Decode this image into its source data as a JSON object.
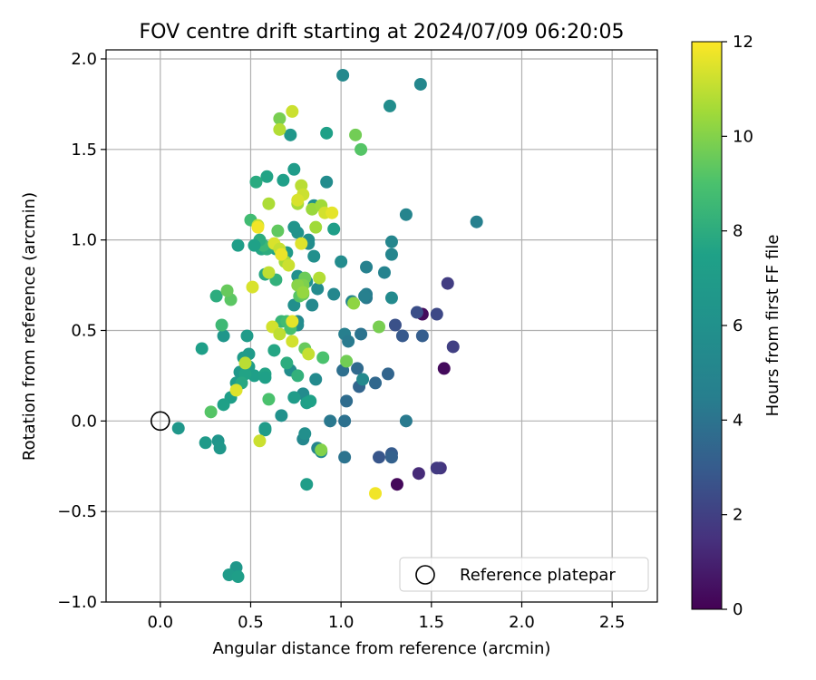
{
  "chart_data": {
    "type": "scatter",
    "title": "FOV centre drift starting at 2024/07/09 06:20:05",
    "xlabel": "Angular distance from reference (arcmin)",
    "ylabel": "Rotation from reference (arcmin)",
    "xlim": [
      -0.3,
      2.75
    ],
    "ylim": [
      -1.0,
      2.05
    ],
    "xticks": [
      0.0,
      0.5,
      1.0,
      1.5,
      2.0,
      2.5
    ],
    "xtick_labels": [
      "0.0",
      "0.5",
      "1.0",
      "1.5",
      "2.0",
      "2.5"
    ],
    "yticks": [
      -1.0,
      -0.5,
      0.0,
      0.5,
      1.0,
      1.5,
      2.0
    ],
    "ytick_labels": [
      "−1.0",
      "−0.5",
      "0.0",
      "0.5",
      "1.0",
      "1.5",
      "2.0"
    ],
    "grid": true,
    "colormap": "viridis",
    "colorbar": {
      "label": "Hours from first FF file",
      "range": [
        0,
        12
      ],
      "ticks": [
        0,
        2,
        4,
        6,
        8,
        10,
        12
      ],
      "tick_labels": [
        "0",
        "2",
        "4",
        "6",
        "8",
        "10",
        "12"
      ]
    },
    "legend": {
      "placement": "lower-right",
      "entries": [
        "Reference platepar"
      ]
    },
    "reference_point": {
      "x": 0.0,
      "y": 0.0,
      "label": "Reference platepar"
    },
    "points": [
      {
        "x": 1.31,
        "y": -0.35,
        "h": 0.2
      },
      {
        "x": 1.45,
        "y": 0.59,
        "h": 0.3
      },
      {
        "x": 1.57,
        "y": 0.29,
        "h": 0.3
      },
      {
        "x": 1.43,
        "y": -0.29,
        "h": 1.3
      },
      {
        "x": 1.55,
        "y": -0.26,
        "h": 1.6
      },
      {
        "x": 1.53,
        "y": -0.26,
        "h": 1.8
      },
      {
        "x": 1.59,
        "y": 0.76,
        "h": 1.9
      },
      {
        "x": 1.62,
        "y": 0.41,
        "h": 2.0
      },
      {
        "x": 1.53,
        "y": 0.59,
        "h": 2.3
      },
      {
        "x": 1.42,
        "y": 0.6,
        "h": 2.5
      },
      {
        "x": 1.3,
        "y": 0.53,
        "h": 2.6
      },
      {
        "x": 1.34,
        "y": 0.47,
        "h": 2.9
      },
      {
        "x": 1.45,
        "y": 0.47,
        "h": 3.1
      },
      {
        "x": 1.28,
        "y": -0.18,
        "h": 3.0
      },
      {
        "x": 1.28,
        "y": -0.2,
        "h": 3.2
      },
      {
        "x": 1.21,
        "y": -0.2,
        "h": 2.8
      },
      {
        "x": 1.1,
        "y": 0.19,
        "h": 3.4
      },
      {
        "x": 1.19,
        "y": 0.21,
        "h": 3.5
      },
      {
        "x": 1.26,
        "y": 0.26,
        "h": 3.4
      },
      {
        "x": 1.09,
        "y": 0.29,
        "h": 3.6
      },
      {
        "x": 1.01,
        "y": 0.28,
        "h": 3.8
      },
      {
        "x": 1.03,
        "y": 0.11,
        "h": 3.7
      },
      {
        "x": 1.02,
        "y": 0.0,
        "h": 3.9
      },
      {
        "x": 0.94,
        "y": 0.0,
        "h": 4.2
      },
      {
        "x": 1.02,
        "y": -0.2,
        "h": 4.0
      },
      {
        "x": 1.36,
        "y": 0.0,
        "h": 4.3
      },
      {
        "x": 1.11,
        "y": 0.48,
        "h": 4.0
      },
      {
        "x": 1.02,
        "y": 0.48,
        "h": 4.5
      },
      {
        "x": 1.04,
        "y": 0.44,
        "h": 4.3
      },
      {
        "x": 1.14,
        "y": 0.68,
        "h": 4.2
      },
      {
        "x": 1.14,
        "y": 0.7,
        "h": 4.4
      },
      {
        "x": 1.13,
        "y": 0.69,
        "h": 4.6
      },
      {
        "x": 1.24,
        "y": 0.82,
        "h": 4.8
      },
      {
        "x": 1.14,
        "y": 0.85,
        "h": 4.7
      },
      {
        "x": 1.28,
        "y": 0.92,
        "h": 5.0
      },
      {
        "x": 1.28,
        "y": 0.99,
        "h": 5.1
      },
      {
        "x": 1.36,
        "y": 1.14,
        "h": 4.9
      },
      {
        "x": 1.75,
        "y": 1.1,
        "h": 4.6
      },
      {
        "x": 1.28,
        "y": 0.68,
        "h": 5.4
      },
      {
        "x": 1.12,
        "y": 0.23,
        "h": 5.3
      },
      {
        "x": 1.0,
        "y": 0.88,
        "h": 5.6
      },
      {
        "x": 0.96,
        "y": 0.7,
        "h": 5.2
      },
      {
        "x": 1.06,
        "y": 0.66,
        "h": 5.0
      },
      {
        "x": 0.87,
        "y": 0.73,
        "h": 5.5
      },
      {
        "x": 0.84,
        "y": 0.64,
        "h": 5.3
      },
      {
        "x": 0.86,
        "y": 0.23,
        "h": 5.4
      },
      {
        "x": 0.87,
        "y": -0.15,
        "h": 5.0
      },
      {
        "x": 0.89,
        "y": -0.17,
        "h": 5.4
      },
      {
        "x": 0.79,
        "y": -0.1,
        "h": 5.2
      },
      {
        "x": 0.8,
        "y": -0.07,
        "h": 5.8
      },
      {
        "x": 0.79,
        "y": 0.15,
        "h": 5.5
      },
      {
        "x": 0.76,
        "y": 0.55,
        "h": 5.3
      },
      {
        "x": 0.76,
        "y": 0.53,
        "h": 5.6
      },
      {
        "x": 0.74,
        "y": 0.64,
        "h": 5.8
      },
      {
        "x": 0.72,
        "y": 0.28,
        "h": 5.7
      },
      {
        "x": 0.67,
        "y": 0.03,
        "h": 6.0
      },
      {
        "x": 0.82,
        "y": 1.0,
        "h": 5.9
      },
      {
        "x": 0.82,
        "y": 0.98,
        "h": 5.7
      },
      {
        "x": 0.81,
        "y": 0.77,
        "h": 6.1
      },
      {
        "x": 0.85,
        "y": 0.91,
        "h": 5.8
      },
      {
        "x": 0.76,
        "y": 0.8,
        "h": 6.0
      },
      {
        "x": 0.76,
        "y": 1.04,
        "h": 6.2
      },
      {
        "x": 0.74,
        "y": 1.07,
        "h": 6.3
      },
      {
        "x": 0.92,
        "y": 1.32,
        "h": 5.6
      },
      {
        "x": 1.01,
        "y": 1.91,
        "h": 5.3
      },
      {
        "x": 1.44,
        "y": 1.86,
        "h": 5.2
      },
      {
        "x": 1.27,
        "y": 1.74,
        "h": 5.7
      },
      {
        "x": 0.85,
        "y": 1.19,
        "h": 6.0
      },
      {
        "x": 0.72,
        "y": 1.58,
        "h": 6.6
      },
      {
        "x": 0.74,
        "y": 1.39,
        "h": 7.0
      },
      {
        "x": 0.68,
        "y": 1.33,
        "h": 7.3
      },
      {
        "x": 0.59,
        "y": 1.35,
        "h": 7.6
      },
      {
        "x": 0.53,
        "y": 1.32,
        "h": 7.9
      },
      {
        "x": 0.92,
        "y": 1.59,
        "h": 7.4
      },
      {
        "x": 0.96,
        "y": 1.06,
        "h": 7.2
      },
      {
        "x": 0.7,
        "y": 0.93,
        "h": 6.8
      },
      {
        "x": 0.67,
        "y": 0.92,
        "h": 7.1
      },
      {
        "x": 0.64,
        "y": 0.95,
        "h": 7.4
      },
      {
        "x": 0.56,
        "y": 0.95,
        "h": 7.7
      },
      {
        "x": 0.59,
        "y": 0.95,
        "h": 8.0
      },
      {
        "x": 0.58,
        "y": 0.81,
        "h": 7.8
      },
      {
        "x": 0.64,
        "y": 0.78,
        "h": 8.2
      },
      {
        "x": 0.57,
        "y": 0.97,
        "h": 8.5
      },
      {
        "x": 0.55,
        "y": 1.0,
        "h": 8.0
      },
      {
        "x": 0.52,
        "y": 0.97,
        "h": 7.5
      },
      {
        "x": 0.43,
        "y": 0.97,
        "h": 7.2
      },
      {
        "x": 0.48,
        "y": 0.47,
        "h": 6.9
      },
      {
        "x": 0.35,
        "y": 0.47,
        "h": 6.5
      },
      {
        "x": 0.49,
        "y": 0.37,
        "h": 6.8
      },
      {
        "x": 0.44,
        "y": 0.27,
        "h": 6.7
      },
      {
        "x": 0.46,
        "y": 0.35,
        "h": 6.9
      },
      {
        "x": 0.49,
        "y": 0.3,
        "h": 7.1
      },
      {
        "x": 0.52,
        "y": 0.25,
        "h": 7.3
      },
      {
        "x": 0.42,
        "y": 0.21,
        "h": 7.0
      },
      {
        "x": 0.39,
        "y": 0.13,
        "h": 7.2
      },
      {
        "x": 0.35,
        "y": 0.09,
        "h": 7.4
      },
      {
        "x": 0.47,
        "y": 0.26,
        "h": 7.6
      },
      {
        "x": 0.45,
        "y": 0.21,
        "h": 7.8
      },
      {
        "x": 0.58,
        "y": 0.26,
        "h": 7.6
      },
      {
        "x": 0.58,
        "y": 0.24,
        "h": 7.4
      },
      {
        "x": 0.63,
        "y": 0.39,
        "h": 7.7
      },
      {
        "x": 0.7,
        "y": 0.32,
        "h": 8.0
      },
      {
        "x": 0.76,
        "y": 0.25,
        "h": 8.2
      },
      {
        "x": 0.74,
        "y": 0.13,
        "h": 7.0
      },
      {
        "x": 0.81,
        "y": 0.1,
        "h": 7.3
      },
      {
        "x": 0.83,
        "y": 0.11,
        "h": 7.5
      },
      {
        "x": 0.58,
        "y": -0.04,
        "h": 6.8
      },
      {
        "x": 0.58,
        "y": -0.05,
        "h": 7.0
      },
      {
        "x": 0.81,
        "y": -0.35,
        "h": 7.1
      },
      {
        "x": 0.42,
        "y": -0.81,
        "h": 6.6
      },
      {
        "x": 0.38,
        "y": -0.85,
        "h": 6.9
      },
      {
        "x": 0.43,
        "y": -0.86,
        "h": 7.2
      },
      {
        "x": 0.1,
        "y": -0.04,
        "h": 6.6
      },
      {
        "x": 0.25,
        "y": -0.12,
        "h": 6.8
      },
      {
        "x": 0.32,
        "y": -0.11,
        "h": 6.4
      },
      {
        "x": 0.33,
        "y": -0.15,
        "h": 6.6
      },
      {
        "x": 0.23,
        "y": 0.4,
        "h": 7.3
      },
      {
        "x": 0.34,
        "y": 0.53,
        "h": 8.6
      },
      {
        "x": 0.31,
        "y": 0.69,
        "h": 8.0
      },
      {
        "x": 0.39,
        "y": 0.67,
        "h": 9.3
      },
      {
        "x": 0.37,
        "y": 0.72,
        "h": 9.5
      },
      {
        "x": 0.28,
        "y": 0.05,
        "h": 9.2
      },
      {
        "x": 0.6,
        "y": 0.12,
        "h": 9.0
      },
      {
        "x": 0.67,
        "y": 0.55,
        "h": 8.4
      },
      {
        "x": 0.7,
        "y": 0.55,
        "h": 8.7
      },
      {
        "x": 0.72,
        "y": 0.51,
        "h": 8.9
      },
      {
        "x": 0.77,
        "y": 0.69,
        "h": 9.2
      },
      {
        "x": 0.79,
        "y": 0.7,
        "h": 9.5
      },
      {
        "x": 0.8,
        "y": 0.4,
        "h": 9.5
      },
      {
        "x": 0.9,
        "y": 0.35,
        "h": 9.0
      },
      {
        "x": 1.03,
        "y": 0.33,
        "h": 9.7
      },
      {
        "x": 0.89,
        "y": -0.16,
        "h": 10.0
      },
      {
        "x": 1.07,
        "y": 0.65,
        "h": 10.2
      },
      {
        "x": 1.21,
        "y": 0.52,
        "h": 9.8
      },
      {
        "x": 1.08,
        "y": 1.58,
        "h": 9.7
      },
      {
        "x": 1.11,
        "y": 1.5,
        "h": 9.2
      },
      {
        "x": 0.66,
        "y": 1.67,
        "h": 9.8
      },
      {
        "x": 0.66,
        "y": 1.61,
        "h": 10.8
      },
      {
        "x": 0.73,
        "y": 1.71,
        "h": 11.2
      },
      {
        "x": 0.65,
        "y": 1.05,
        "h": 9.4
      },
      {
        "x": 0.8,
        "y": 0.79,
        "h": 9.6
      },
      {
        "x": 0.79,
        "y": 0.75,
        "h": 9.9
      },
      {
        "x": 0.76,
        "y": 0.75,
        "h": 10.1
      },
      {
        "x": 0.79,
        "y": 0.71,
        "h": 10.3
      },
      {
        "x": 0.5,
        "y": 1.11,
        "h": 8.7
      },
      {
        "x": 0.6,
        "y": 1.2,
        "h": 10.7
      },
      {
        "x": 0.76,
        "y": 1.2,
        "h": 10.6
      },
      {
        "x": 0.78,
        "y": 1.3,
        "h": 10.9
      },
      {
        "x": 0.79,
        "y": 1.25,
        "h": 11.2
      },
      {
        "x": 0.76,
        "y": 1.22,
        "h": 11.4
      },
      {
        "x": 0.84,
        "y": 1.17,
        "h": 10.4
      },
      {
        "x": 0.89,
        "y": 1.19,
        "h": 10.5
      },
      {
        "x": 0.91,
        "y": 1.15,
        "h": 11.3
      },
      {
        "x": 0.95,
        "y": 1.15,
        "h": 11.6
      },
      {
        "x": 0.86,
        "y": 1.07,
        "h": 10.5
      },
      {
        "x": 0.54,
        "y": 1.08,
        "h": 11.0
      },
      {
        "x": 0.54,
        "y": 1.07,
        "h": 11.8
      },
      {
        "x": 0.63,
        "y": 0.98,
        "h": 11.4
      },
      {
        "x": 0.66,
        "y": 0.95,
        "h": 11.1
      },
      {
        "x": 0.69,
        "y": 0.88,
        "h": 10.6
      },
      {
        "x": 0.71,
        "y": 0.86,
        "h": 11.2
      },
      {
        "x": 0.6,
        "y": 0.82,
        "h": 11.0
      },
      {
        "x": 0.67,
        "y": 0.92,
        "h": 11.7
      },
      {
        "x": 0.78,
        "y": 0.98,
        "h": 11.5
      },
      {
        "x": 0.88,
        "y": 0.79,
        "h": 10.8
      },
      {
        "x": 0.51,
        "y": 0.74,
        "h": 11.4
      },
      {
        "x": 0.62,
        "y": 0.52,
        "h": 11.3
      },
      {
        "x": 0.66,
        "y": 0.48,
        "h": 11.0
      },
      {
        "x": 0.73,
        "y": 0.55,
        "h": 11.6
      },
      {
        "x": 0.73,
        "y": 0.44,
        "h": 11.3
      },
      {
        "x": 0.82,
        "y": 0.37,
        "h": 11.1
      },
      {
        "x": 0.47,
        "y": 0.32,
        "h": 10.9
      },
      {
        "x": 0.42,
        "y": 0.17,
        "h": 11.5
      },
      {
        "x": 0.55,
        "y": -0.11,
        "h": 11.2
      },
      {
        "x": 1.19,
        "y": -0.4,
        "h": 11.8
      }
    ]
  }
}
